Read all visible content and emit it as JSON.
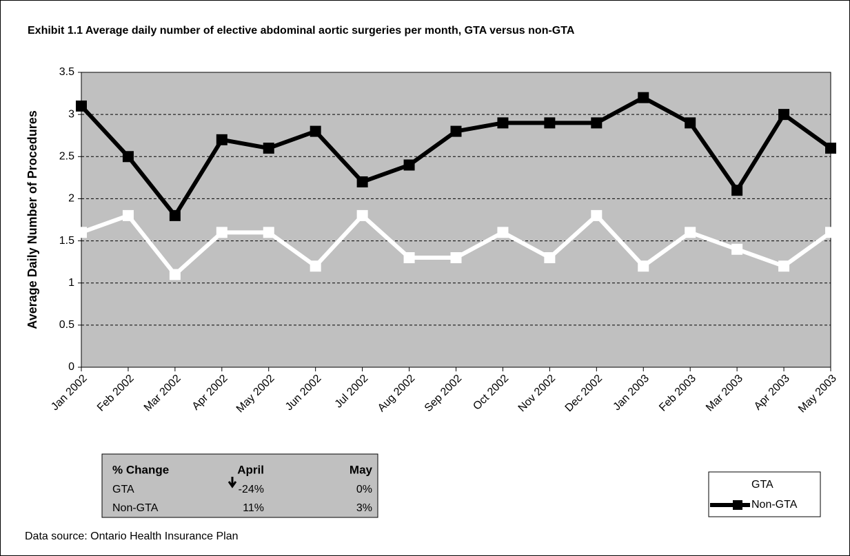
{
  "chart_data": {
    "type": "line",
    "title": "Exhibit 1.1 Average daily number of elective abdominal aortic surgeries per month, GTA versus non-GTA",
    "ylabel": "Average Daily Number of Procedures",
    "categories": [
      "Jan 2002",
      "Feb 2002",
      "Mar 2002",
      "Apr 2002",
      "May 2002",
      "Jun 2002",
      "Jul 2002",
      "Aug 2002",
      "Sep 2002",
      "Oct 2002",
      "Nov 2002",
      "Dec 2002",
      "Jan 2003",
      "Feb 2003",
      "Mar 2003",
      "Apr 2003",
      "May 2003"
    ],
    "series": [
      {
        "name": "GTA",
        "color": "#ffffff",
        "values": [
          1.6,
          1.8,
          1.1,
          1.6,
          1.6,
          1.2,
          1.8,
          1.3,
          1.3,
          1.6,
          1.3,
          1.8,
          1.2,
          1.6,
          1.4,
          1.2,
          1.6
        ]
      },
      {
        "name": "Non-GTA",
        "color": "#000000",
        "values": [
          3.1,
          2.5,
          1.8,
          2.7,
          2.6,
          2.8,
          2.2,
          2.4,
          2.8,
          2.9,
          2.9,
          2.9,
          3.2,
          2.9,
          2.1,
          3.0,
          2.6
        ]
      }
    ],
    "ylim": [
      0,
      3.5
    ],
    "yticks": [
      0,
      0.5,
      1,
      1.5,
      2,
      2.5,
      3,
      3.5
    ],
    "grid": true,
    "legend": "bottom-right"
  },
  "table": {
    "header": [
      "% Change",
      "April",
      "May"
    ],
    "rows": [
      [
        "GTA",
        "-24%",
        "0%"
      ],
      [
        "Non-GTA",
        "11%",
        "3%"
      ]
    ]
  },
  "source": "Data source: Ontario Health Insurance Plan"
}
